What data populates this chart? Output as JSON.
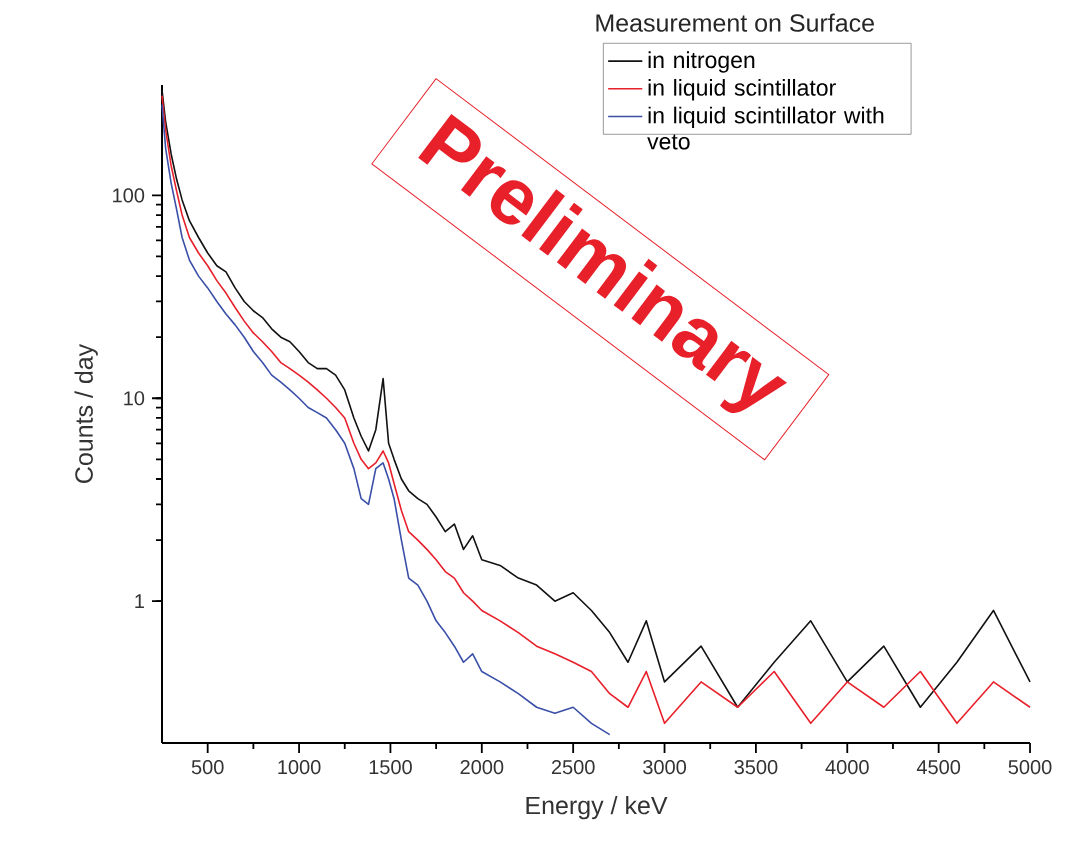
{
  "chart_data": {
    "type": "line",
    "xlabel": "Energy / keV",
    "ylabel": "Counts / day",
    "legend_title": "Measurement on Surface",
    "annotations": [
      "Preliminary"
    ],
    "x": [
      250,
      270,
      300,
      330,
      360,
      400,
      450,
      500,
      550,
      600,
      650,
      700,
      750,
      800,
      850,
      900,
      950,
      1000,
      1050,
      1100,
      1150,
      1200,
      1250,
      1300,
      1340,
      1380,
      1420,
      1460,
      1490,
      1520,
      1560,
      1600,
      1650,
      1700,
      1750,
      1800,
      1850,
      1900,
      1950,
      2000,
      2100,
      2200,
      2300,
      2400,
      2500,
      2600,
      2700,
      2800,
      2900,
      3000,
      3200,
      3400,
      3600,
      3800,
      4000,
      4200,
      4400,
      4600,
      4800,
      5000
    ],
    "series": [
      {
        "name": "in nitrogen",
        "color": "#111111",
        "values": [
          330,
          230,
          160,
          120,
          95,
          75,
          62,
          52,
          45,
          42,
          35,
          30,
          27,
          25,
          22,
          20,
          19,
          17,
          15,
          14,
          14,
          13,
          11,
          8,
          6.5,
          5.5,
          7,
          12.5,
          6,
          5,
          4,
          3.5,
          3.2,
          3,
          2.6,
          2.2,
          2.4,
          1.8,
          2.1,
          1.6,
          1.5,
          1.3,
          1.2,
          1.0,
          1.1,
          0.9,
          0.7,
          0.5,
          0.8,
          0.4,
          0.6,
          0.3,
          0.5,
          0.8,
          0.4,
          0.6,
          0.3,
          0.5,
          0.9,
          0.4
        ]
      },
      {
        "name": "in liquid scintillator",
        "color": "#e8202a",
        "values": [
          310,
          210,
          140,
          105,
          80,
          62,
          52,
          45,
          38,
          33,
          28,
          24,
          21,
          19,
          17,
          15,
          14,
          13,
          12,
          11,
          10,
          9,
          8,
          6,
          5,
          4.5,
          4.8,
          5.5,
          4.8,
          3.8,
          2.8,
          2.2,
          2,
          1.8,
          1.6,
          1.4,
          1.3,
          1.1,
          1.0,
          0.9,
          0.8,
          0.7,
          0.6,
          0.55,
          0.5,
          0.45,
          0.35,
          0.3,
          0.45,
          0.25,
          0.4,
          0.3,
          0.45,
          0.25,
          0.4,
          0.3,
          0.45,
          0.25,
          0.4,
          0.3
        ]
      },
      {
        "name": "in liquid scintillator with veto",
        "color": "#3a4fa8",
        "x": [
          250,
          270,
          300,
          330,
          360,
          400,
          450,
          500,
          550,
          600,
          650,
          700,
          750,
          800,
          850,
          900,
          950,
          1000,
          1050,
          1100,
          1150,
          1200,
          1250,
          1300,
          1340,
          1380,
          1420,
          1460,
          1490,
          1520,
          1560,
          1600,
          1650,
          1700,
          1750,
          1800,
          1850,
          1900,
          1950,
          2000,
          2100,
          2200,
          2300,
          2400,
          2500,
          2600,
          2700
        ],
        "values": [
          280,
          170,
          115,
          85,
          62,
          48,
          40,
          35,
          30,
          26,
          23,
          20,
          17,
          15,
          13,
          12,
          11,
          10,
          9,
          8.5,
          8,
          7,
          6,
          4.5,
          3.2,
          3,
          4.5,
          4.8,
          4,
          3.2,
          2,
          1.3,
          1.2,
          1,
          0.8,
          0.7,
          0.6,
          0.5,
          0.55,
          0.45,
          0.4,
          0.35,
          0.3,
          0.28,
          0.3,
          0.25,
          0.22
        ]
      }
    ],
    "xlim": [
      250,
      5000
    ],
    "ylim": [
      0.2,
      350
    ],
    "xticks": [
      500,
      1000,
      1500,
      2000,
      2500,
      3000,
      3500,
      4000,
      4500,
      5000
    ],
    "yticks": [
      1,
      10,
      100
    ],
    "log": "y",
    "legend": "top right"
  }
}
